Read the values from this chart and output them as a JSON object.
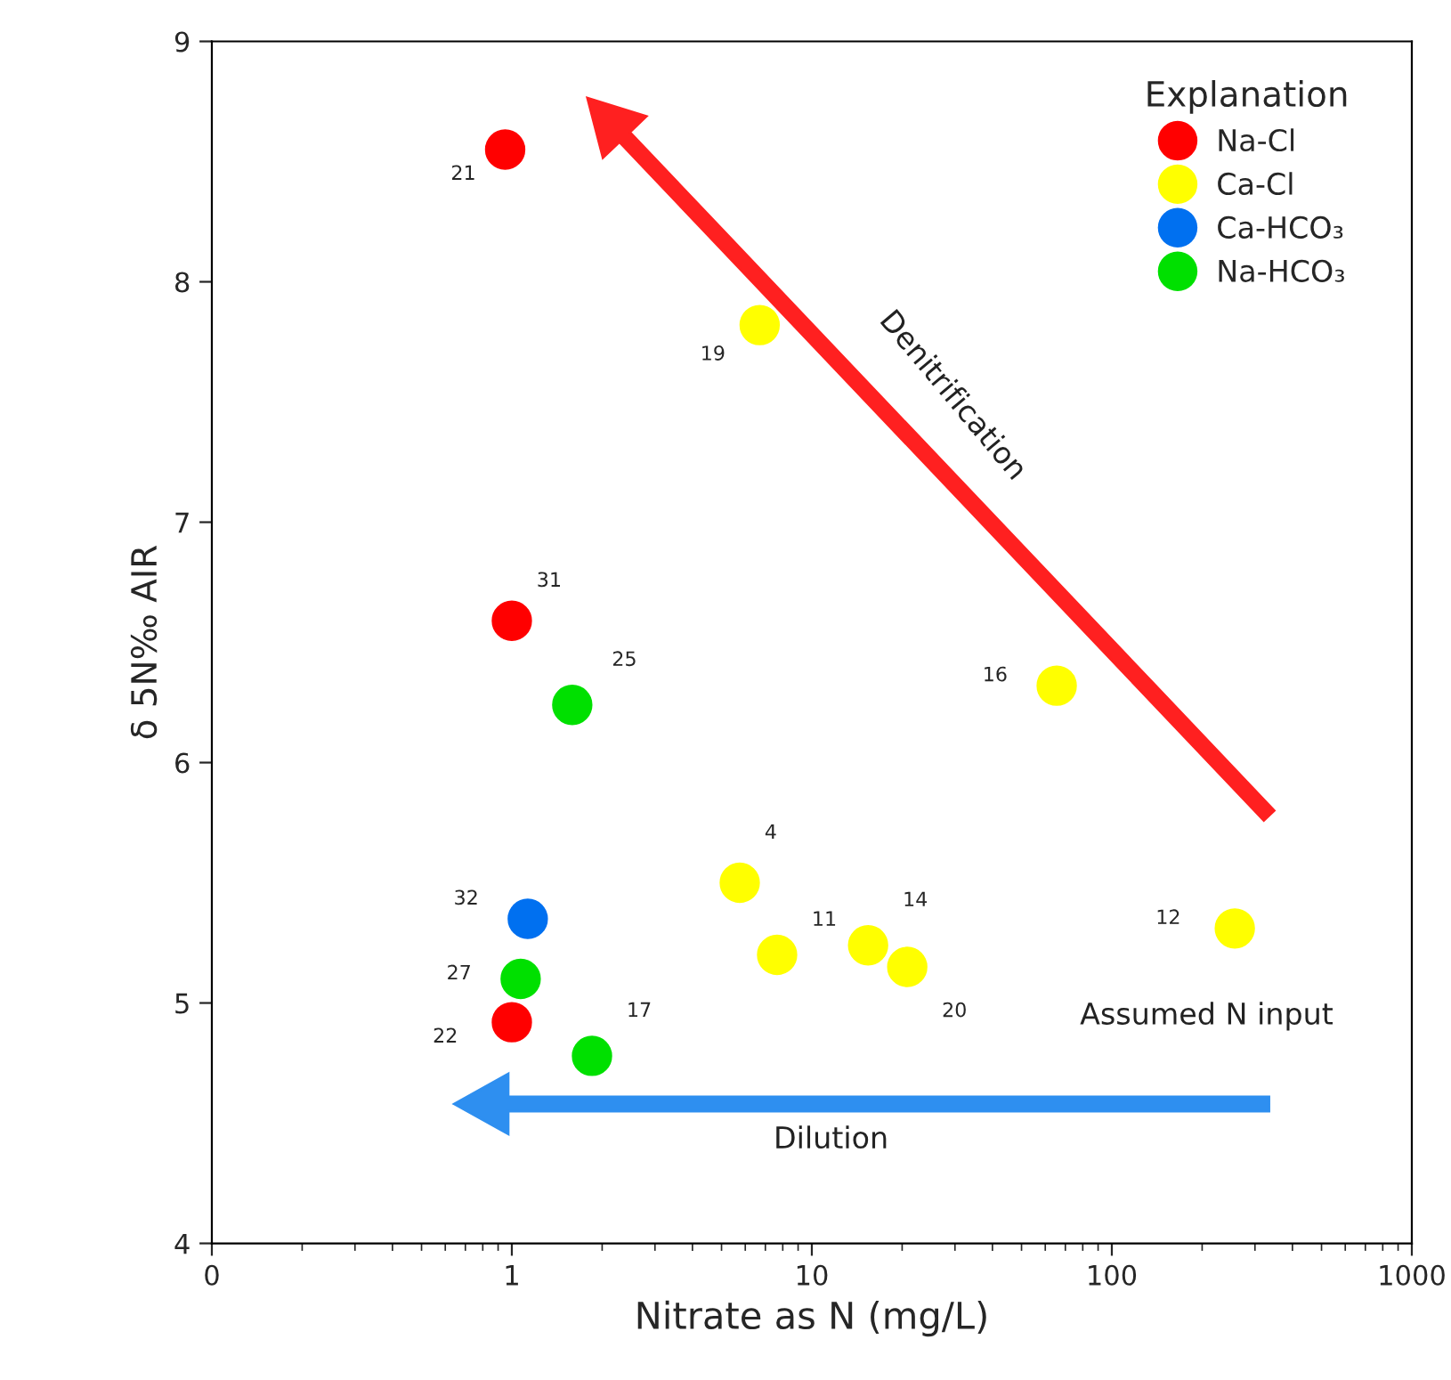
{
  "chart_data": {
    "type": "scatter",
    "xlabel": "Nitrate as N (mg/L)",
    "ylabel": "δ 5N‰ AIR",
    "legend_title": "Explanation",
    "legend": "top right",
    "marker": "circle",
    "log": "x",
    "grid": false,
    "xlim": [
      0.1,
      1000
    ],
    "xticks": [
      {
        "value": 0.1,
        "label": "0"
      },
      1,
      10,
      100,
      1000
    ],
    "ylim": [
      4,
      9
    ],
    "yticks": [
      4,
      5,
      6,
      7,
      8,
      9
    ],
    "series": [
      {
        "name": "Na-Cl",
        "color": "#ff0000",
        "x": [
          0.95,
          1.0,
          1.0
        ],
        "values": [
          8.55,
          6.59,
          4.92
        ]
      },
      {
        "name": "Ca-Cl",
        "color": "#ffff00",
        "x": [
          6.7,
          65.5,
          5.75,
          7.66,
          15.4,
          20.8,
          257
        ],
        "values": [
          7.82,
          6.32,
          5.5,
          5.2,
          5.24,
          5.15,
          5.31
        ]
      },
      {
        "name": "Ca-HCO₃",
        "color": "#0070f0",
        "x": [
          1.13
        ],
        "values": [
          5.35
        ]
      },
      {
        "name": "Na-HCO₃",
        "color": "#00e000",
        "x": [
          1.59,
          1.07,
          1.85
        ],
        "values": [
          6.24,
          5.1,
          4.78
        ]
      }
    ],
    "annotations": [
      {
        "text": "21",
        "x": 0.95,
        "y": 8.55
      },
      {
        "text": "19",
        "x": 6.7,
        "y": 7.82
      },
      {
        "text": "31",
        "x": 1.0,
        "y": 6.59
      },
      {
        "text": "25",
        "x": 1.59,
        "y": 6.24
      },
      {
        "text": "16",
        "x": 65.5,
        "y": 6.32
      },
      {
        "text": "4",
        "x": 5.75,
        "y": 5.5
      },
      {
        "text": "32",
        "x": 1.13,
        "y": 5.35
      },
      {
        "text": "11",
        "x": 7.66,
        "y": 5.2
      },
      {
        "text": "14",
        "x": 15.4,
        "y": 5.24
      },
      {
        "text": "20",
        "x": 20.8,
        "y": 5.15
      },
      {
        "text": "12",
        "x": 257,
        "y": 5.31
      },
      {
        "text": "27",
        "x": 1.07,
        "y": 5.1
      },
      {
        "text": "22",
        "x": 1.0,
        "y": 4.92
      },
      {
        "text": "17",
        "x": 1.85,
        "y": 4.78
      },
      "Denitrification",
      "Dilution",
      "Assumed N input"
    ]
  }
}
